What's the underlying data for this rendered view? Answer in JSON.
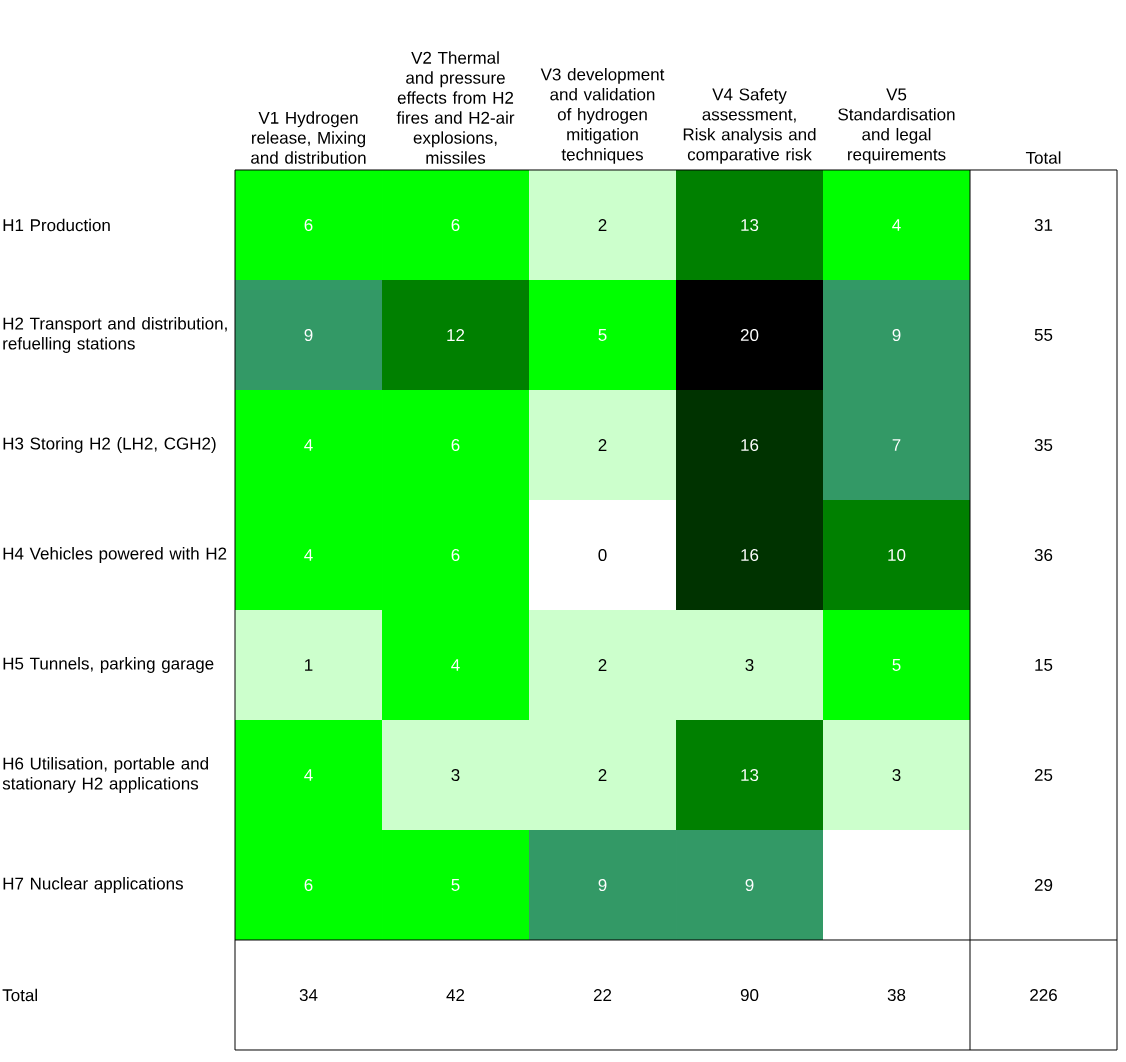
{
  "chart_data": {
    "type": "heatmap",
    "categories": [
      "V1 Hydrogen release, Mixing and distribution",
      "V2 Thermal and pressure effects from H2 fires and H2-air explosions, missiles",
      "V3 development and validation of hydrogen mitigation techniques",
      "V4 Safety assessment, Risk analysis and comparative risk",
      "V5 Standardisation and legal requirements",
      "Total"
    ],
    "y_categories": [
      "H1 Production",
      "H2 Transport and distribution, refuelling stations",
      "H3 Storing H2 (LH2, CGH2)",
      "H4 Vehicles powered with H2",
      "H5 Tunnels, parking garage",
      "H6 Utilisation, portable and stationary H2 applications",
      "H7 Nuclear applications",
      "Total"
    ],
    "cells": [
      [
        6,
        6,
        2,
        13,
        4,
        31
      ],
      [
        9,
        12,
        5,
        20,
        9,
        55
      ],
      [
        4,
        6,
        2,
        16,
        7,
        35
      ],
      [
        4,
        6,
        0,
        16,
        10,
        36
      ],
      [
        1,
        4,
        2,
        3,
        5,
        15
      ],
      [
        4,
        3,
        2,
        13,
        3,
        25
      ],
      [
        6,
        5,
        9,
        9,
        null,
        29
      ],
      [
        34,
        42,
        22,
        90,
        38,
        226
      ]
    ],
    "colors": [
      [
        "#00ff00",
        "#00ff00",
        "#ccffcc",
        "#008000",
        "#00ff00",
        "#ffffff"
      ],
      [
        "#339966",
        "#008000",
        "#00ff00",
        "#000000",
        "#339966",
        "#ffffff"
      ],
      [
        "#00ff00",
        "#00ff00",
        "#ccffcc",
        "#003300",
        "#339966",
        "#ffffff"
      ],
      [
        "#00ff00",
        "#00ff00",
        "#ffffff",
        "#003300",
        "#008000",
        "#ffffff"
      ],
      [
        "#ccffcc",
        "#00ff00",
        "#ccffcc",
        "#ccffcc",
        "#00ff00",
        "#ffffff"
      ],
      [
        "#00ff00",
        "#ccffcc",
        "#ccffcc",
        "#008000",
        "#ccffcc",
        "#ffffff"
      ],
      [
        "#00ff00",
        "#00ff00",
        "#339966",
        "#339966",
        "#ffffff",
        "#ffffff"
      ],
      [
        "#ffffff",
        "#ffffff",
        "#ffffff",
        "#ffffff",
        "#ffffff",
        "#ffffff"
      ]
    ],
    "data_labels": true
  }
}
